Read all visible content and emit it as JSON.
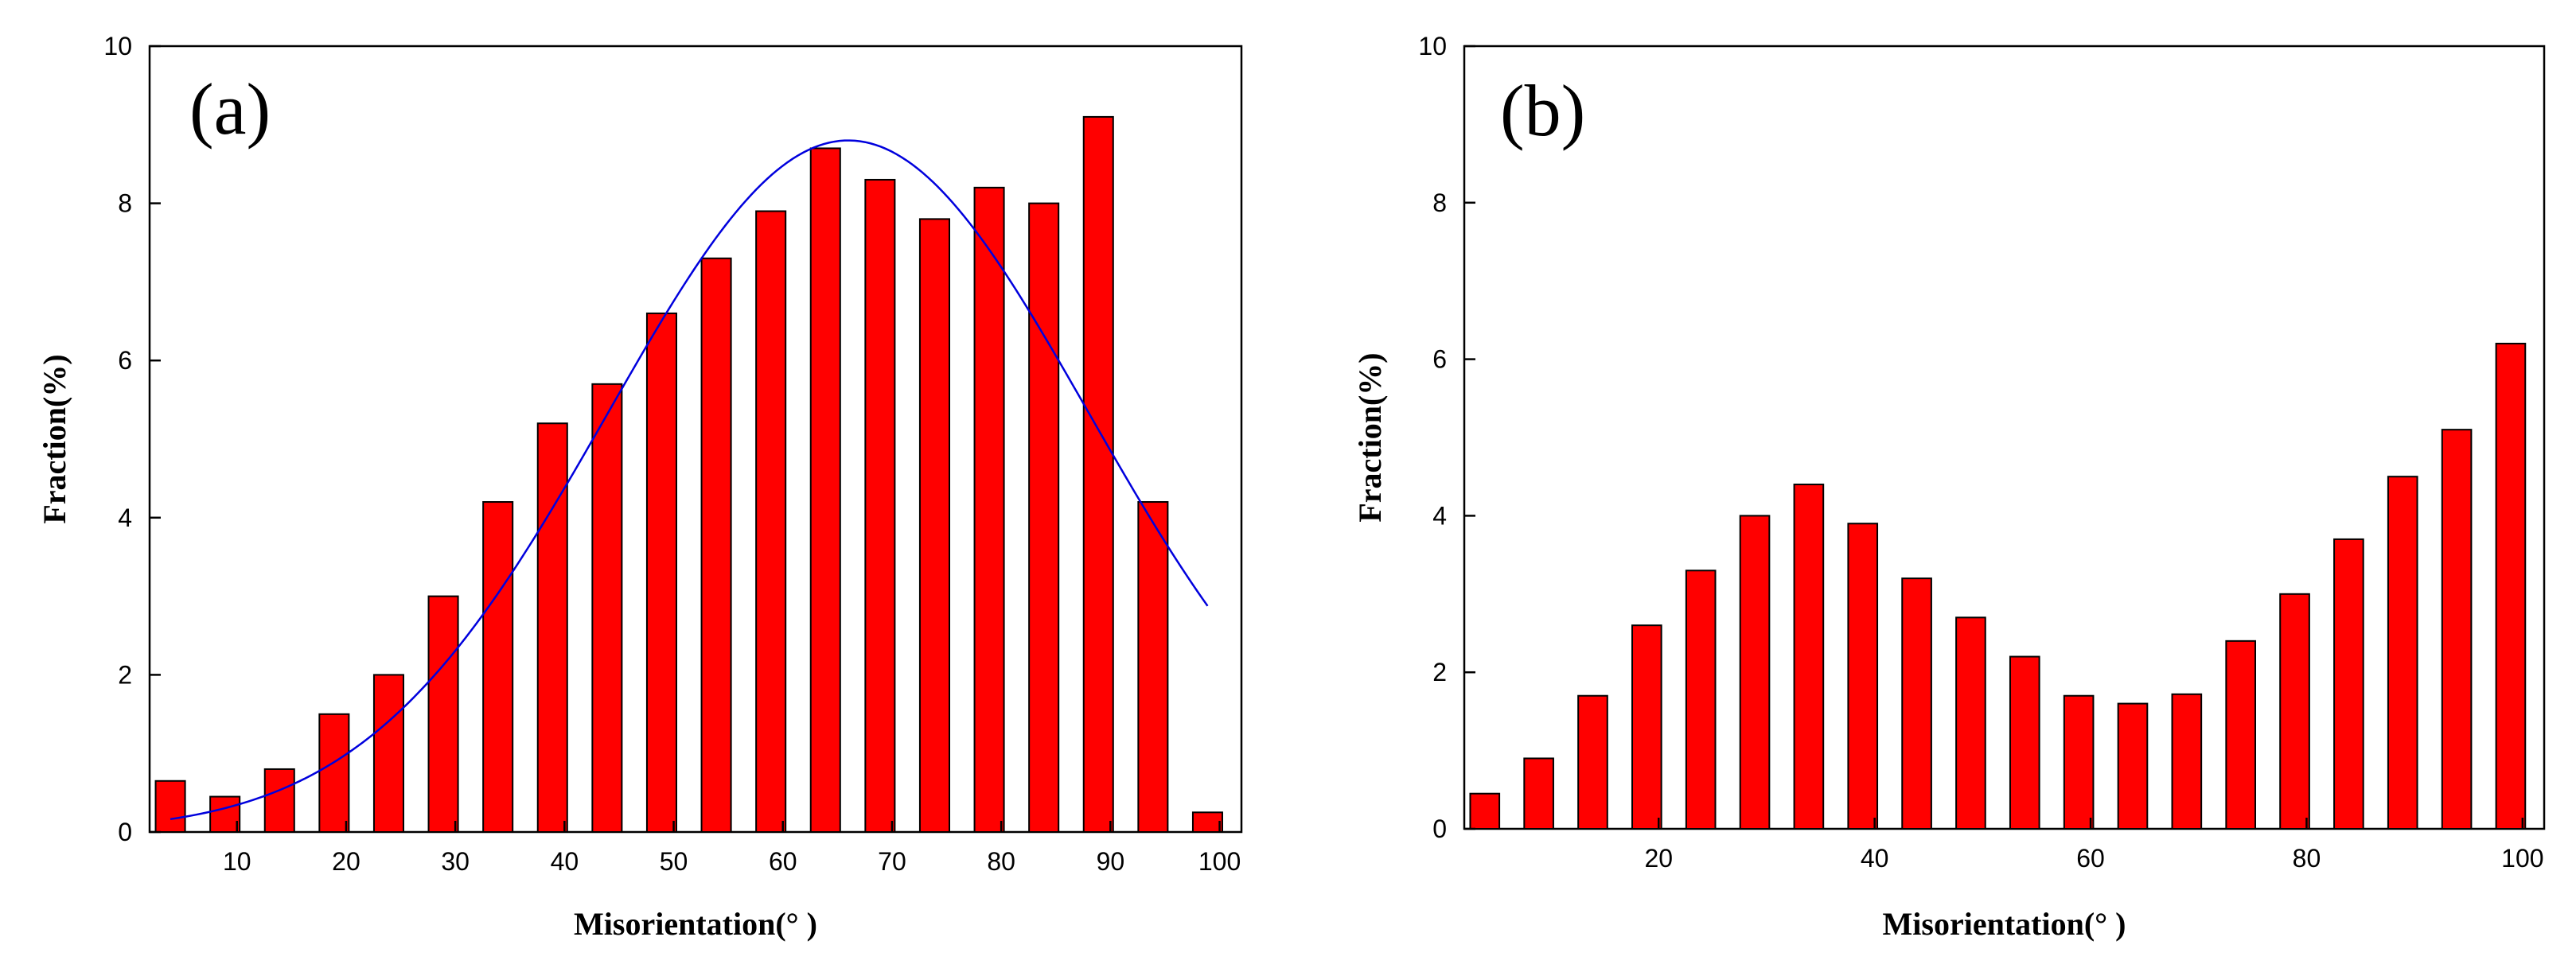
{
  "chart_data": [
    {
      "id": "a",
      "type": "bar",
      "panel_label": "(a)",
      "xlabel": "Misorientation(° )",
      "ylabel": "Fraction(%)",
      "xlim": [
        2,
        102
      ],
      "ylim": [
        0,
        10
      ],
      "xticks": [
        10,
        20,
        30,
        40,
        50,
        60,
        70,
        80,
        90,
        100
      ],
      "yticks": [
        0,
        2,
        4,
        6,
        8,
        10
      ],
      "bar_color": "#ff0000",
      "bar_width": 2.7,
      "x": [
        3.9,
        8.9,
        13.9,
        18.9,
        23.9,
        28.9,
        33.9,
        38.9,
        43.9,
        48.9,
        53.9,
        58.9,
        63.9,
        68.9,
        73.9,
        78.9,
        83.9,
        88.9,
        93.9,
        98.9
      ],
      "values": [
        0.65,
        0.45,
        0.8,
        1.5,
        2.0,
        3.0,
        4.2,
        5.2,
        5.7,
        6.6,
        7.3,
        7.9,
        8.7,
        8.3,
        7.8,
        8.2,
        8.0,
        9.1,
        4.2,
        0.25
      ],
      "fit_curve": {
        "type": "gaussian",
        "color": "#0000dd",
        "amplitude": 8.8,
        "center": 66,
        "sigma": 22,
        "x_range": [
          3.9,
          98.9
        ]
      }
    },
    {
      "id": "b",
      "type": "bar",
      "panel_label": "(b)",
      "xlabel": "Misorientation(° )",
      "ylabel": "Fraction(%)",
      "xlim": [
        2,
        102
      ],
      "ylim": [
        0,
        10
      ],
      "xticks": [
        20,
        40,
        60,
        80,
        100
      ],
      "yticks": [
        0,
        2,
        4,
        6,
        8,
        10
      ],
      "bar_color": "#ff0000",
      "bar_width": 2.7,
      "x": [
        3.9,
        8.9,
        13.9,
        18.9,
        23.9,
        28.9,
        33.9,
        38.9,
        43.9,
        48.9,
        53.9,
        58.9,
        63.9,
        68.9,
        73.9,
        78.9,
        83.9,
        88.9,
        93.9,
        98.9
      ],
      "values": [
        0.45,
        0.9,
        1.7,
        2.6,
        3.3,
        4.0,
        4.4,
        3.9,
        3.2,
        2.7,
        2.2,
        1.7,
        1.6,
        1.72,
        2.4,
        3.0,
        3.7,
        4.5,
        5.1,
        6.2
      ]
    }
  ]
}
